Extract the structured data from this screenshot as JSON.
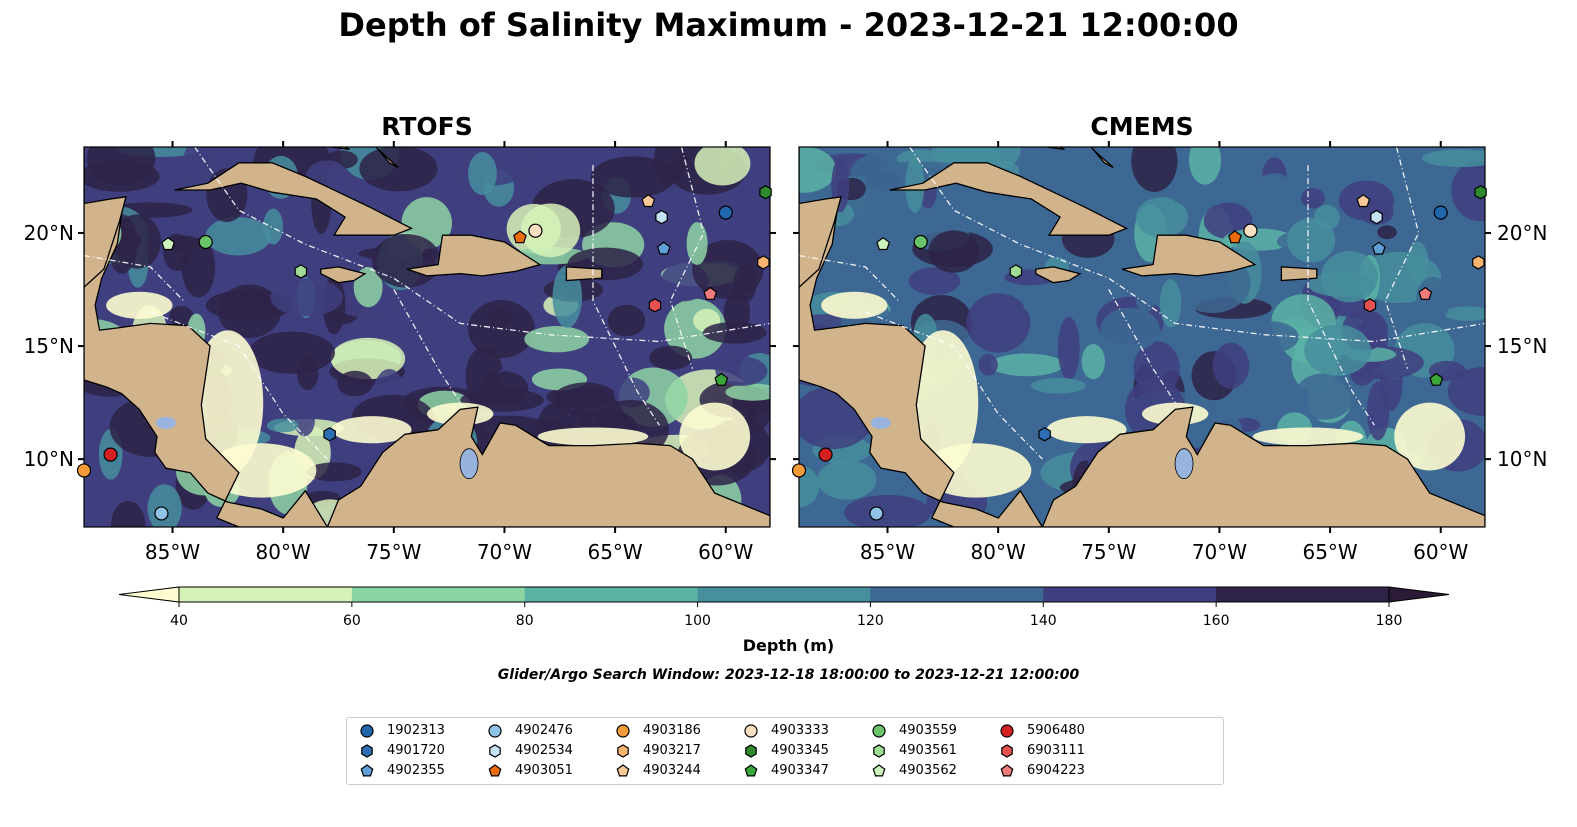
{
  "title": "Depth of Salinity Maximum - 2023-12-21 12:00:00",
  "panels": [
    {
      "title": "RTOFS"
    },
    {
      "title": "CMEMS"
    }
  ],
  "map_extent": {
    "lon_min": -89,
    "lon_max": -58,
    "lat_min": 7,
    "lat_max": 23.8
  },
  "lon_ticks": [
    "85°W",
    "80°W",
    "75°W",
    "70°W",
    "65°W",
    "60°W"
  ],
  "lon_tick_values": [
    -85,
    -80,
    -75,
    -70,
    -65,
    -60
  ],
  "lat_ticks": [
    "20°N",
    "15°N",
    "10°N"
  ],
  "lat_tick_values": [
    20,
    15,
    10
  ],
  "colorbar": {
    "label": "Depth (m)",
    "ticks": [
      "40",
      "60",
      "80",
      "100",
      "120",
      "140",
      "160",
      "180"
    ],
    "colors": [
      "#d7f2b8",
      "#8dd4a3",
      "#5bb3a6",
      "#478e9e",
      "#3d6893",
      "#3f3f7f",
      "#2e2346"
    ],
    "under_color": "#fdfcd0",
    "over_color": "#2b1b37"
  },
  "colors": {
    "land": "#d2b48c",
    "water_inland": "#98b4de"
  },
  "subtitle": "Glider/Argo Search Window: 2023-12-18 18:00:00 to 2023-12-21 12:00:00",
  "legend": [
    {
      "id": "1902313",
      "marker": "circle",
      "color": "#2166ac"
    },
    {
      "id": "4901720",
      "marker": "hexagon",
      "color": "#2c6fb3"
    },
    {
      "id": "4902355",
      "marker": "pentagon",
      "color": "#5e9fd6"
    },
    {
      "id": "4902476",
      "marker": "circle",
      "color": "#8fc3e8"
    },
    {
      "id": "4902534",
      "marker": "hexagon",
      "color": "#c6e2f5"
    },
    {
      "id": "4903051",
      "marker": "pentagon",
      "color": "#ec6c0c"
    },
    {
      "id": "4903186",
      "marker": "circle",
      "color": "#f59b3a"
    },
    {
      "id": "4903217",
      "marker": "hexagon",
      "color": "#f9b470"
    },
    {
      "id": "4903244",
      "marker": "pentagon",
      "color": "#fbc999"
    },
    {
      "id": "4903333",
      "marker": "circle",
      "color": "#fde0c2"
    },
    {
      "id": "4903345",
      "marker": "hexagon",
      "color": "#2d8a2d"
    },
    {
      "id": "4903347",
      "marker": "pentagon",
      "color": "#3aa63a"
    },
    {
      "id": "4903559",
      "marker": "circle",
      "color": "#6cc46a"
    },
    {
      "id": "4903561",
      "marker": "hexagon",
      "color": "#9fdc95"
    },
    {
      "id": "4903562",
      "marker": "pentagon",
      "color": "#ccf2bd"
    },
    {
      "id": "5906480",
      "marker": "circle",
      "color": "#d42020"
    },
    {
      "id": "6903111",
      "marker": "hexagon",
      "color": "#e55050"
    },
    {
      "id": "6904223",
      "marker": "pentagon",
      "color": "#ef7b7b"
    }
  ],
  "floats": [
    {
      "id": "1902313",
      "lon": -60,
      "lat": 20.9
    },
    {
      "id": "4901720",
      "lon": -77.9,
      "lat": 11.1
    },
    {
      "id": "4902355",
      "lon": -62.8,
      "lat": 19.3
    },
    {
      "id": "4902476",
      "lon": -85.5,
      "lat": 7.6
    },
    {
      "id": "4902534",
      "lon": -62.9,
      "lat": 20.7
    },
    {
      "id": "4903051",
      "lon": -69.3,
      "lat": 19.8
    },
    {
      "id": "4903186",
      "lon": -89,
      "lat": 9.5
    },
    {
      "id": "4903217",
      "lon": -58.3,
      "lat": 18.7
    },
    {
      "id": "4903244",
      "lon": -63.5,
      "lat": 21.4
    },
    {
      "id": "4903333",
      "lon": -68.6,
      "lat": 20.1
    },
    {
      "id": "4903345",
      "lon": -58.2,
      "lat": 21.8
    },
    {
      "id": "4903347",
      "lon": -60.2,
      "lat": 13.5
    },
    {
      "id": "4903559",
      "lon": -83.5,
      "lat": 19.6
    },
    {
      "id": "4903561",
      "lon": -79.2,
      "lat": 18.3
    },
    {
      "id": "4903562",
      "lon": -85.2,
      "lat": 19.5
    },
    {
      "id": "5906480",
      "lon": -87.8,
      "lat": 10.2
    },
    {
      "id": "6903111",
      "lon": -63.2,
      "lat": 16.8
    },
    {
      "id": "6904223",
      "lon": -60.7,
      "lat": 17.3
    }
  ]
}
